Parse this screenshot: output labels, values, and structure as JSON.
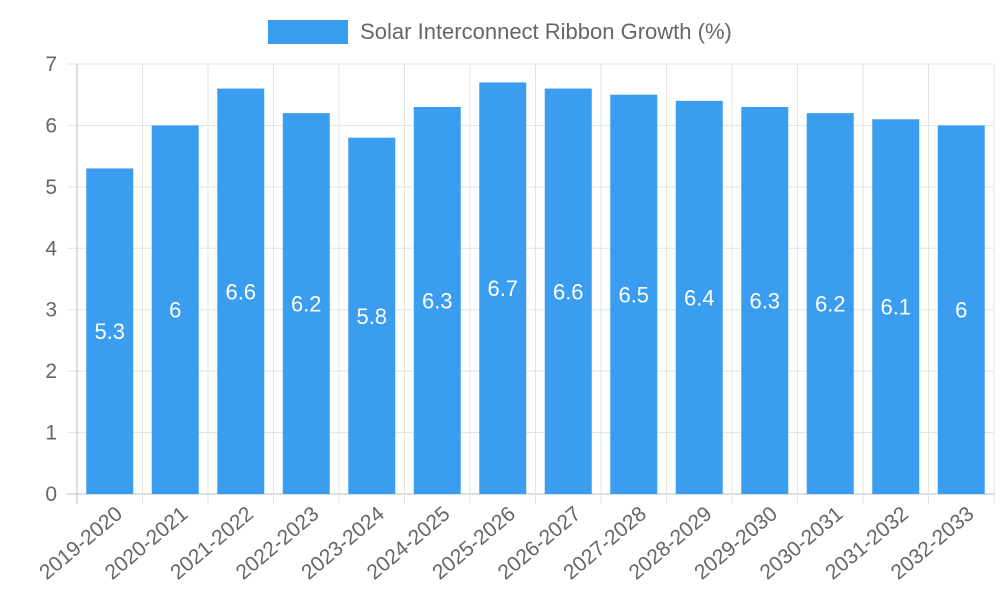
{
  "colors": {
    "bar": "#3a9df0",
    "grid": "#e3e3e3",
    "axis": "#bdbdbd",
    "text": "#666666",
    "label": "#ffffff"
  },
  "chart_data": {
    "type": "bar",
    "title": "",
    "legend": [
      "Solar Interconnect Ribbon Growth (%)"
    ],
    "legend_position": "top-center",
    "xlabel": "",
    "ylabel": "",
    "ylim": [
      0,
      7
    ],
    "yticks": [
      "0",
      "1",
      "2",
      "3",
      "4",
      "5",
      "6",
      "7"
    ],
    "grid": true,
    "categories": [
      "2019-2020",
      "2020-2021",
      "2021-2022",
      "2022-2023",
      "2023-2024",
      "2024-2025",
      "2025-2026",
      "2026-2027",
      "2027-2028",
      "2028-2029",
      "2029-2030",
      "2030-2031",
      "2031-2032",
      "2032-2033"
    ],
    "series": [
      {
        "name": "Solar Interconnect Ribbon Growth (%)",
        "values": [
          5.3,
          6,
          6.6,
          6.2,
          5.8,
          6.3,
          6.7,
          6.6,
          6.5,
          6.4,
          6.3,
          6.2,
          6.1,
          6
        ],
        "data_labels": [
          "5.3",
          "6",
          "6.6",
          "6.2",
          "5.8",
          "6.3",
          "6.7",
          "6.6",
          "6.5",
          "6.4",
          "6.3",
          "6.2",
          "6.1",
          "6"
        ]
      }
    ]
  }
}
